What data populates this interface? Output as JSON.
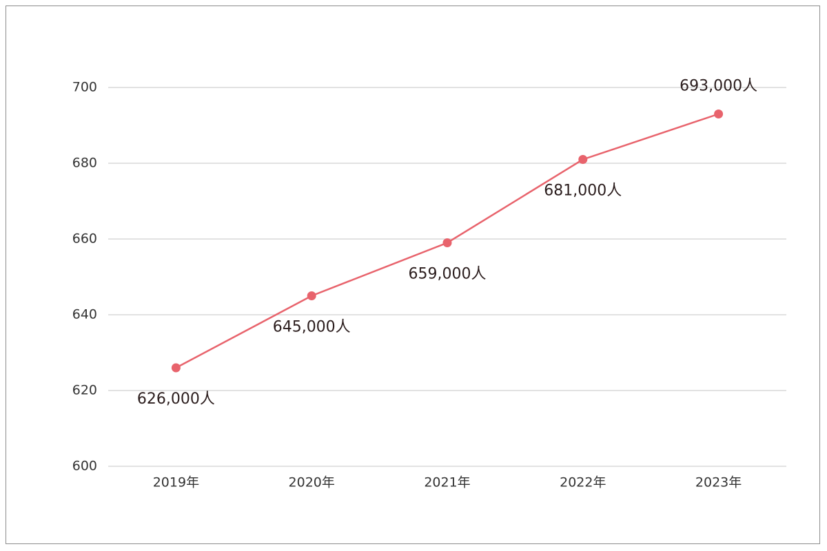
{
  "chart_data": {
    "type": "line",
    "categories": [
      "2019年",
      "2020年",
      "2021年",
      "2022年",
      "2023年"
    ],
    "series": [
      {
        "values": [
          626,
          645,
          659,
          681,
          693
        ],
        "data_labels": [
          "626,000人",
          "645,000人",
          "659,000人",
          "681,000人",
          "693,000人"
        ]
      }
    ],
    "y_ticks": [
      "600",
      "620",
      "640",
      "660",
      "680",
      "700"
    ],
    "ylim": [
      600,
      700
    ],
    "grid": true,
    "colors": {
      "series": "#e8636c",
      "grid": "#d9d9d9",
      "frame": "#8c8c8c"
    }
  }
}
